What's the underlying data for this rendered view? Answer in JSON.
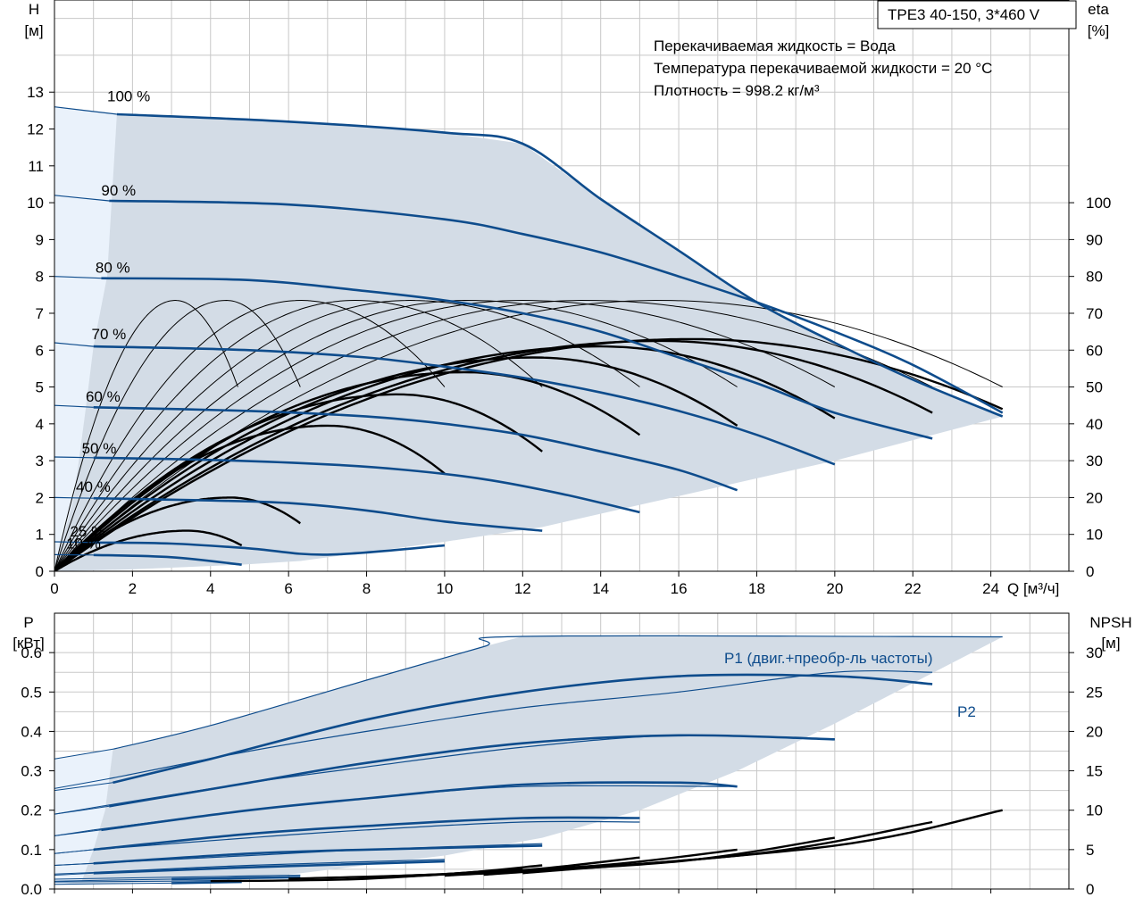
{
  "chart_data": [
    {
      "type": "line",
      "title": "TPE3 40-150, 3*460 V",
      "notes": [
        "Перекачиваемая жидкость = Вода",
        "Температура перекачиваемой жидкости = 20 °C",
        "Плотность = 998.2 кг/м³"
      ],
      "xlabel": "Q [м³/ч]",
      "ylabel_left": [
        "H",
        "[м]"
      ],
      "ylabel_right": [
        "eta",
        "[%]"
      ],
      "xlim": [
        0,
        26
      ],
      "ylim": [
        0,
        15.5
      ],
      "ylim_right": [
        0,
        155
      ],
      "x_ticks": [
        "0",
        "2",
        "4",
        "6",
        "8",
        "10",
        "12",
        "14",
        "16",
        "18",
        "20",
        "22",
        "24"
      ],
      "y_ticks": [
        "0",
        "1",
        "2",
        "3",
        "4",
        "5",
        "6",
        "7",
        "8",
        "9",
        "10",
        "11",
        "12",
        "13"
      ],
      "y_right_ticks": [
        "0",
        "10",
        "20",
        "30",
        "40",
        "50",
        "60",
        "70",
        "80",
        "90",
        "100"
      ],
      "grid": true,
      "colors": {
        "envelope": "#d3dce6",
        "envelope_light": "#eaf2fb",
        "curve": "#0e4c8c",
        "eta": "#000000",
        "grid": "#c8c8c8"
      },
      "speed_labels": [
        "100 %",
        "90 %",
        "80 %",
        "70 %",
        "60 %",
        "50 %",
        "40 %",
        "25 %",
        "10 %"
      ],
      "head_curves": [
        {
          "name": "100 %",
          "points": [
            [
              0,
              12.6
            ],
            [
              1.6,
              12.4
            ],
            [
              6,
              12.2
            ],
            [
              10,
              11.9
            ],
            [
              12,
              11.6
            ],
            [
              14,
              10.1
            ],
            [
              16,
              8.7
            ],
            [
              18,
              7.3
            ],
            [
              20,
              6.2
            ],
            [
              22,
              5.2
            ],
            [
              24.3,
              4.2
            ]
          ]
        },
        {
          "name": "90 %",
          "points": [
            [
              0,
              10.2
            ],
            [
              1.4,
              10.05
            ],
            [
              6,
              9.95
            ],
            [
              10,
              9.55
            ],
            [
              12,
              9.15
            ],
            [
              14,
              8.65
            ],
            [
              16,
              8.0
            ],
            [
              18,
              7.3
            ],
            [
              20,
              6.5
            ],
            [
              22,
              5.6
            ],
            [
              24.3,
              4.3
            ]
          ]
        },
        {
          "name": "80 %",
          "points": [
            [
              0,
              8.0
            ],
            [
              1.2,
              7.95
            ],
            [
              5,
              7.9
            ],
            [
              8,
              7.6
            ],
            [
              10,
              7.35
            ],
            [
              12,
              7.0
            ],
            [
              14,
              6.5
            ],
            [
              16,
              5.8
            ],
            [
              18,
              5.1
            ],
            [
              20,
              4.3
            ],
            [
              22.5,
              3.6
            ]
          ]
        },
        {
          "name": "70 %",
          "points": [
            [
              0,
              6.2
            ],
            [
              1,
              6.1
            ],
            [
              5,
              6.0
            ],
            [
              8,
              5.8
            ],
            [
              10,
              5.55
            ],
            [
              12,
              5.25
            ],
            [
              14,
              4.85
            ],
            [
              16,
              4.35
            ],
            [
              18,
              3.7
            ],
            [
              20,
              2.9
            ]
          ]
        },
        {
          "name": "60 %",
          "points": [
            [
              0,
              4.5
            ],
            [
              1,
              4.45
            ],
            [
              5,
              4.35
            ],
            [
              8,
              4.2
            ],
            [
              10,
              4.0
            ],
            [
              12,
              3.7
            ],
            [
              14,
              3.25
            ],
            [
              16,
              2.75
            ],
            [
              17.5,
              2.2
            ]
          ]
        },
        {
          "name": "50 %",
          "points": [
            [
              0,
              3.1
            ],
            [
              1,
              3.08
            ],
            [
              4,
              3.02
            ],
            [
              7,
              2.9
            ],
            [
              9,
              2.75
            ],
            [
              11,
              2.5
            ],
            [
              13,
              2.1
            ],
            [
              15,
              1.6
            ]
          ]
        },
        {
          "name": "40 %",
          "points": [
            [
              0,
              2.0
            ],
            [
              1,
              1.98
            ],
            [
              4,
              1.92
            ],
            [
              6,
              1.85
            ],
            [
              8,
              1.65
            ],
            [
              10,
              1.35
            ],
            [
              12.5,
              1.1
            ]
          ]
        },
        {
          "name": "25 %",
          "points": [
            [
              0,
              0.8
            ],
            [
              1,
              0.78
            ],
            [
              3,
              0.75
            ],
            [
              5,
              0.62
            ],
            [
              7,
              0.45
            ],
            [
              10,
              0.7
            ]
          ]
        },
        {
          "name": "10 %",
          "points": [
            [
              0,
              0.45
            ],
            [
              1,
              0.44
            ],
            [
              3,
              0.38
            ],
            [
              4.8,
              0.18
            ]
          ]
        }
      ],
      "eta_curves_thin": [
        {
          "apex_q": 3.1,
          "end_q": 4.7,
          "peak": 73.5,
          "end": 50
        },
        {
          "apex_q": 4.4,
          "end_q": 6.3,
          "peak": 73.5,
          "end": 50
        },
        {
          "apex_q": 6.3,
          "end_q": 10.0,
          "peak": 73.5,
          "end": 50
        },
        {
          "apex_q": 7.7,
          "end_q": 12.5,
          "peak": 73.5,
          "end": 50
        },
        {
          "apex_q": 9.1,
          "end_q": 15.0,
          "peak": 73.5,
          "end": 50
        },
        {
          "apex_q": 10.6,
          "end_q": 17.5,
          "peak": 73.5,
          "end": 50
        },
        {
          "apex_q": 12.0,
          "end_q": 20.0,
          "peak": 73.5,
          "end": 50
        },
        {
          "apex_q": 13.6,
          "end_q": 22.5,
          "peak": 73.5,
          "end": 50
        },
        {
          "apex_q": 15.5,
          "end_q": 24.3,
          "peak": 73.5,
          "end": 50
        }
      ],
      "eta_curves_thick": [
        {
          "apex_q": 3.4,
          "end_q": 4.8,
          "peak": 11,
          "end": 7
        },
        {
          "apex_q": 4.5,
          "end_q": 6.3,
          "peak": 20,
          "end": 13
        },
        {
          "apex_q": 7.0,
          "end_q": 10.0,
          "peak": 39.5,
          "end": 26.5
        },
        {
          "apex_q": 8.8,
          "end_q": 12.5,
          "peak": 48,
          "end": 32.5
        },
        {
          "apex_q": 10.5,
          "end_q": 15.0,
          "peak": 54,
          "end": 37
        },
        {
          "apex_q": 12.3,
          "end_q": 17.5,
          "peak": 58,
          "end": 39.5
        },
        {
          "apex_q": 14.0,
          "end_q": 20.0,
          "peak": 61,
          "end": 41.5
        },
        {
          "apex_q": 15.5,
          "end_q": 22.5,
          "peak": 62.5,
          "end": 43
        },
        {
          "apex_q": 16.3,
          "end_q": 24.3,
          "peak": 63,
          "end": 44
        }
      ]
    },
    {
      "type": "line",
      "ylabel_left": [
        "P",
        "[кВт]"
      ],
      "ylabel_right": [
        "NPSH",
        "[м]"
      ],
      "xlim": [
        0,
        26
      ],
      "ylim": [
        0,
        0.7
      ],
      "ylim_right": [
        0,
        35
      ],
      "y_ticks": [
        "0.0",
        "0.1",
        "0.2",
        "0.3",
        "0.4",
        "0.5",
        "0.6"
      ],
      "y_right_ticks": [
        "0",
        "5",
        "10",
        "15",
        "20",
        "25",
        "30"
      ],
      "grid": true,
      "series_labels": {
        "p1": "P1 (двиг.+преобр-ль частоты)",
        "p2": "P2"
      },
      "p1_curves": [
        {
          "points": [
            [
              0,
              0.33
            ],
            [
              1.5,
              0.355
            ],
            [
              4,
              0.415
            ],
            [
              8,
              0.53
            ],
            [
              11,
              0.615
            ],
            [
              12,
              0.641
            ],
            [
              24.3,
              0.64
            ]
          ]
        },
        {
          "points": [
            [
              0,
              0.255
            ],
            [
              1.4,
              0.28
            ],
            [
              5,
              0.35
            ],
            [
              8,
              0.4
            ],
            [
              12,
              0.46
            ],
            [
              16,
              0.5
            ],
            [
              20,
              0.55
            ],
            [
              22.5,
              0.55
            ]
          ]
        },
        {
          "points": [
            [
              0,
              0.19
            ],
            [
              1.2,
              0.21
            ],
            [
              5,
              0.27
            ],
            [
              8,
              0.31
            ],
            [
              12,
              0.36
            ],
            [
              16,
              0.39
            ],
            [
              20,
              0.38
            ]
          ]
        },
        {
          "points": [
            [
              0,
              0.135
            ],
            [
              1,
              0.15
            ],
            [
              5,
              0.2
            ],
            [
              8,
              0.23
            ],
            [
              12,
              0.26
            ],
            [
              17.5,
              0.26
            ]
          ]
        },
        {
          "points": [
            [
              0,
              0.09
            ],
            [
              1,
              0.1
            ],
            [
              5,
              0.13
            ],
            [
              8,
              0.15
            ],
            [
              12,
              0.17
            ],
            [
              15,
              0.17
            ]
          ]
        },
        {
          "points": [
            [
              0,
              0.06
            ],
            [
              1,
              0.065
            ],
            [
              5,
              0.085
            ],
            [
              8,
              0.1
            ],
            [
              12.5,
              0.115
            ]
          ]
        },
        {
          "points": [
            [
              0,
              0.038
            ],
            [
              1,
              0.042
            ],
            [
              5,
              0.06
            ],
            [
              10,
              0.075
            ]
          ]
        },
        {
          "points": [
            [
              0,
              0.025
            ],
            [
              3,
              0.03
            ],
            [
              6.3,
              0.035
            ]
          ]
        },
        {
          "points": [
            [
              0,
              0.018
            ],
            [
              3,
              0.02
            ],
            [
              4.8,
              0.022
            ]
          ]
        }
      ],
      "p2_curves": [
        {
          "points": [
            [
              0,
              0.25
            ],
            [
              1.5,
              0.27
            ],
            [
              4,
              0.33
            ],
            [
              8,
              0.43
            ],
            [
              12,
              0.5
            ],
            [
              16,
              0.54
            ],
            [
              20,
              0.54
            ],
            [
              22.5,
              0.52
            ]
          ]
        },
        {
          "points": [
            [
              0,
              0.19
            ],
            [
              1.4,
              0.21
            ],
            [
              5,
              0.27
            ],
            [
              8,
              0.32
            ],
            [
              12,
              0.37
            ],
            [
              16,
              0.39
            ],
            [
              20,
              0.38
            ]
          ]
        },
        {
          "points": [
            [
              0,
              0.135
            ],
            [
              1.2,
              0.15
            ],
            [
              5,
              0.2
            ],
            [
              8,
              0.23
            ],
            [
              12,
              0.265
            ],
            [
              16,
              0.27
            ],
            [
              17.5,
              0.26
            ]
          ]
        },
        {
          "points": [
            [
              0,
              0.09
            ],
            [
              1,
              0.1
            ],
            [
              5,
              0.14
            ],
            [
              8,
              0.16
            ],
            [
              12,
              0.18
            ],
            [
              15,
              0.18
            ]
          ]
        },
        {
          "points": [
            [
              0,
              0.06
            ],
            [
              1,
              0.065
            ],
            [
              5,
              0.09
            ],
            [
              8,
              0.1
            ],
            [
              12.5,
              0.11
            ]
          ]
        },
        {
          "points": [
            [
              0,
              0.035
            ],
            [
              1,
              0.04
            ],
            [
              5,
              0.055
            ],
            [
              10,
              0.07
            ]
          ]
        },
        {
          "points": [
            [
              0,
              0.02
            ],
            [
              3,
              0.025
            ],
            [
              6.3,
              0.03
            ]
          ]
        },
        {
          "points": [
            [
              0,
              0.012
            ],
            [
              3,
              0.015
            ],
            [
              4.8,
              0.018
            ]
          ]
        }
      ],
      "npsh_curves": [
        {
          "points": [
            [
              4,
              1.0
            ],
            [
              8,
              1.3
            ],
            [
              12,
              2.6
            ]
          ]
        },
        {
          "points": [
            [
              6,
              1.3
            ],
            [
              10,
              1.9
            ],
            [
              12.5,
              3.0
            ]
          ]
        },
        {
          "points": [
            [
              8,
              1.5
            ],
            [
              12,
              2.4
            ],
            [
              15,
              4.0
            ]
          ]
        },
        {
          "points": [
            [
              9,
              1.6
            ],
            [
              14,
              3.0
            ],
            [
              17.5,
              5.0
            ]
          ]
        },
        {
          "points": [
            [
              10,
              1.7
            ],
            [
              16,
              3.5
            ],
            [
              20,
              6.5
            ]
          ]
        },
        {
          "points": [
            [
              11,
              1.8
            ],
            [
              18,
              4.5
            ],
            [
              22.5,
              8.5
            ]
          ]
        },
        {
          "points": [
            [
              12,
              2.0
            ],
            [
              20,
              5.5
            ],
            [
              24.3,
              10.0
            ]
          ]
        }
      ]
    }
  ]
}
